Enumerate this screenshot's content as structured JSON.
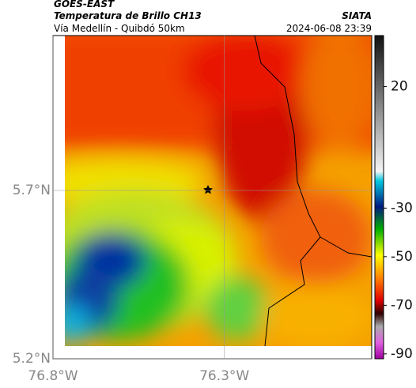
{
  "header": {
    "agency": "GOES-EAST",
    "title": "Temperatura de Brillo CH13",
    "subtitle": "Vía Medellín - Quibdó 50km",
    "source": "SIATA",
    "datetime": "2024-06-08 23:39"
  },
  "map": {
    "lat_lim": [
      5.2,
      6.16
    ],
    "lon_lim": [
      -76.8,
      -75.87
    ],
    "lat_ticks": [
      {
        "value": 5.7,
        "label": "5.7°N"
      },
      {
        "value": 5.2,
        "label": "5.2°N"
      }
    ],
    "lon_ticks": [
      {
        "value": -76.8,
        "label": "76.8°W"
      },
      {
        "value": -76.3,
        "label": "76.3°W"
      }
    ]
  },
  "colorbar": {
    "lim": [
      -92,
      41
    ],
    "ticks": [
      20,
      -30,
      -50,
      -70,
      -90
    ]
  }
}
